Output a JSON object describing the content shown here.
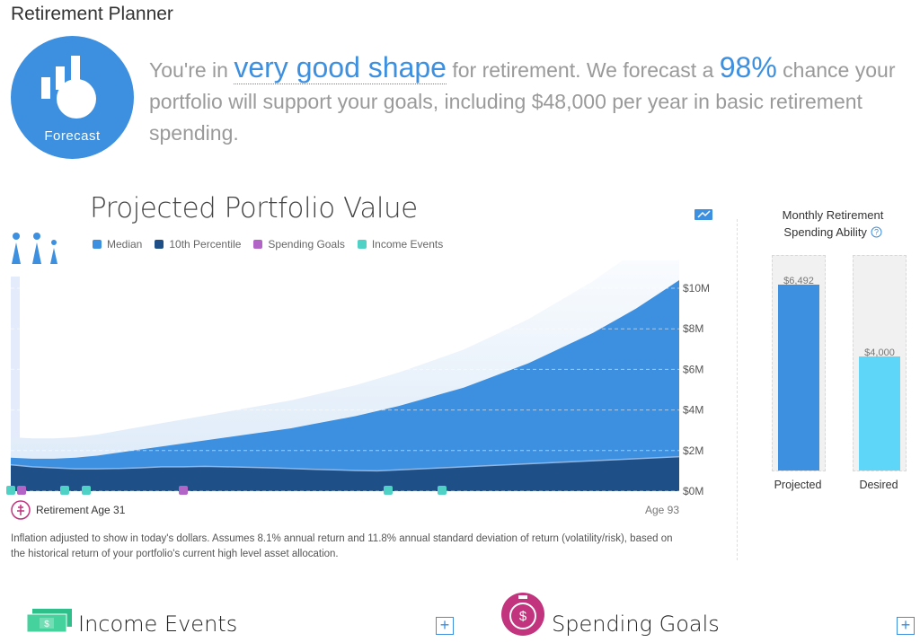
{
  "app": {
    "title": "Retirement Planner"
  },
  "badge": {
    "label": "Forecast",
    "color": "#3d8fdf"
  },
  "headline": {
    "part1": "You're in ",
    "rating": "very good shape",
    "part2": " for retirement. We forecast a ",
    "percent": "98%",
    "part3": " chance your portfolio will support your goals, including $48,000 per year in basic retirement spending."
  },
  "chart": {
    "title": "Projected Portfolio Value",
    "legend": [
      {
        "label": "Median",
        "color": "#3d8fdf"
      },
      {
        "label": "10th Percentile",
        "color": "#1e4f86"
      },
      {
        "label": "Spending Goals",
        "color": "#b265c6"
      },
      {
        "label": "Income Events",
        "color": "#4fd1c5"
      }
    ],
    "retire_label": "Retirement Age 31",
    "end_label": "Age 93",
    "footnote": "Inflation adjusted to show in today's dollars. Assumes 8.1% annual return and 11.8% annual standard deviation of return (volatility/risk), based on the historical return of your portfolio's current high level asset allocation."
  },
  "chart_data": {
    "type": "area",
    "title": "Projected Portfolio Value",
    "xlabel": "",
    "ylabel": "",
    "x_range": [
      31,
      93
    ],
    "ylim": [
      0,
      11
    ],
    "ytick_labels": [
      "$0M",
      "$2M",
      "$4M",
      "$6M",
      "$8M",
      "$10M"
    ],
    "yticks": [
      0,
      2,
      4,
      6,
      8,
      10
    ],
    "x": [
      31,
      33,
      35,
      37,
      39,
      41,
      43,
      45,
      47,
      49,
      51,
      53,
      55,
      57,
      59,
      61,
      63,
      65,
      67,
      69,
      71,
      73,
      75,
      77,
      79,
      81,
      83,
      85,
      87,
      89,
      91,
      93
    ],
    "series": [
      {
        "name": "Median",
        "values": [
          1.65,
          1.6,
          1.6,
          1.65,
          1.75,
          1.9,
          2.05,
          2.2,
          2.35,
          2.5,
          2.65,
          2.8,
          2.95,
          3.1,
          3.3,
          3.5,
          3.7,
          3.95,
          4.2,
          4.5,
          4.8,
          5.1,
          5.5,
          5.9,
          6.3,
          6.8,
          7.3,
          7.8,
          8.4,
          9.0,
          9.7,
          10.4
        ]
      },
      {
        "name": "10th Percentile",
        "values": [
          1.3,
          1.2,
          1.15,
          1.1,
          1.1,
          1.12,
          1.15,
          1.2,
          1.2,
          1.22,
          1.2,
          1.18,
          1.15,
          1.12,
          1.08,
          1.05,
          1.02,
          1.0,
          1.05,
          1.1,
          1.15,
          1.2,
          1.25,
          1.3,
          1.35,
          1.4,
          1.45,
          1.5,
          1.55,
          1.6,
          1.65,
          1.7
        ]
      }
    ],
    "spending_goal_ages": [
      32,
      47
    ],
    "income_event_ages": [
      31,
      36,
      38,
      66,
      71
    ]
  },
  "monthly": {
    "title_line1": "Monthly Retirement",
    "title_line2": "Spending Ability",
    "bars": [
      {
        "name": "Projected",
        "label": "$6,492",
        "value": 6492,
        "color": "#3d8fdf"
      },
      {
        "name": "Desired",
        "label": "$4,000",
        "value": 4000,
        "color": "#5ed6f7"
      }
    ],
    "scale_max": 7500
  },
  "sections": {
    "income": {
      "title": "Income Events"
    },
    "spending": {
      "title": "Spending Goals"
    }
  }
}
